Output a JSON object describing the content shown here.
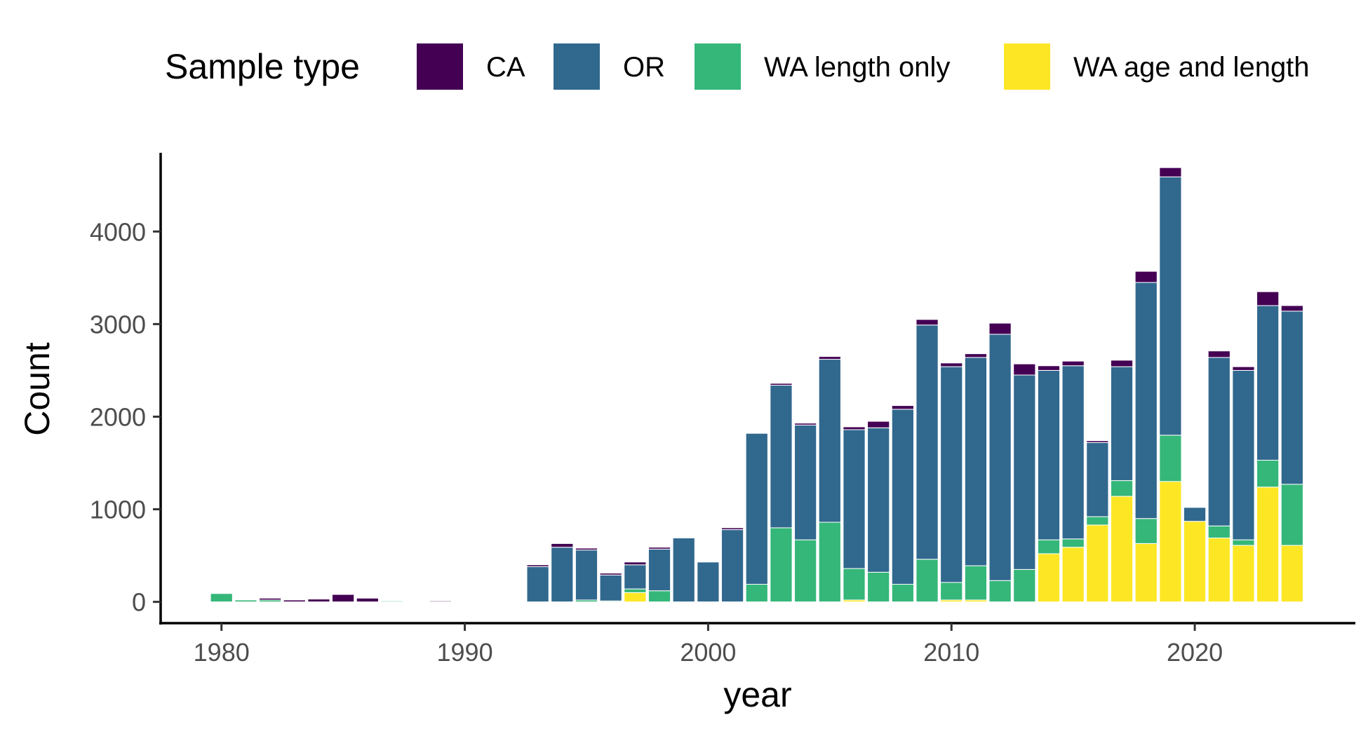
{
  "chart_data": {
    "type": "bar",
    "stacked": true,
    "xlabel": "year",
    "ylabel": "Count",
    "xlim": [
      1977.5,
      2026.6
    ],
    "ylim": [
      -230,
      4850
    ],
    "x_ticks": [
      1980,
      1990,
      2000,
      2010,
      2020
    ],
    "y_ticks": [
      0,
      1000,
      2000,
      3000,
      4000
    ],
    "grid": false,
    "legend": {
      "title": "Sample type",
      "position": "top",
      "entries": [
        {
          "key": "CA",
          "label": "CA",
          "color": "#440154"
        },
        {
          "key": "OR",
          "label": "OR",
          "color": "#31688e"
        },
        {
          "key": "WA_length_only",
          "label": "WA length only",
          "color": "#35b779"
        },
        {
          "key": "WA_age_and_length",
          "label": "WA age and length",
          "color": "#fde725"
        }
      ]
    },
    "stack_order": [
      "WA_age_and_length",
      "WA_length_only",
      "OR",
      "CA"
    ],
    "x": [
      1980,
      1981,
      1982,
      1983,
      1984,
      1985,
      1986,
      1987,
      1989,
      1993,
      1994,
      1995,
      1996,
      1997,
      1998,
      1999,
      2000,
      2001,
      2002,
      2003,
      2004,
      2005,
      2006,
      2007,
      2008,
      2009,
      2010,
      2011,
      2012,
      2013,
      2014,
      2015,
      2016,
      2017,
      2018,
      2019,
      2020,
      2021,
      2022,
      2023,
      2024
    ],
    "series": [
      {
        "key": "WA_age_and_length",
        "name": "WA age and length",
        "color": "#fde725",
        "values": [
          0,
          0,
          0,
          0,
          0,
          0,
          0,
          0,
          0,
          0,
          0,
          0,
          0,
          100,
          0,
          0,
          0,
          0,
          0,
          0,
          0,
          0,
          20,
          0,
          0,
          0,
          20,
          20,
          0,
          0,
          520,
          590,
          830,
          1140,
          630,
          1300,
          870,
          690,
          610,
          1240,
          610
        ]
      },
      {
        "key": "WA_length_only",
        "name": "WA length only",
        "color": "#35b779",
        "values": [
          90,
          20,
          20,
          0,
          0,
          0,
          0,
          10,
          0,
          0,
          0,
          20,
          10,
          40,
          120,
          0,
          0,
          0,
          190,
          800,
          670,
          860,
          340,
          320,
          190,
          460,
          190,
          370,
          230,
          350,
          150,
          90,
          90,
          170,
          270,
          500,
          0,
          130,
          60,
          290,
          660
        ]
      },
      {
        "key": "OR",
        "name": "OR",
        "color": "#31688e",
        "values": [
          0,
          0,
          0,
          0,
          0,
          0,
          0,
          0,
          0,
          380,
          590,
          540,
          280,
          260,
          450,
          690,
          430,
          780,
          1630,
          1540,
          1240,
          1760,
          1500,
          1560,
          1890,
          2530,
          2330,
          2250,
          2660,
          2100,
          1830,
          1870,
          800,
          1230,
          2550,
          2790,
          150,
          1820,
          1830,
          1670,
          1870
        ]
      },
      {
        "key": "CA",
        "name": "CA",
        "color": "#440154",
        "values": [
          0,
          0,
          20,
          20,
          30,
          80,
          40,
          0,
          10,
          20,
          40,
          20,
          20,
          30,
          20,
          0,
          0,
          20,
          0,
          20,
          20,
          30,
          30,
          70,
          40,
          60,
          40,
          40,
          120,
          120,
          50,
          50,
          20,
          70,
          120,
          100,
          0,
          70,
          40,
          150,
          60
        ]
      }
    ]
  }
}
